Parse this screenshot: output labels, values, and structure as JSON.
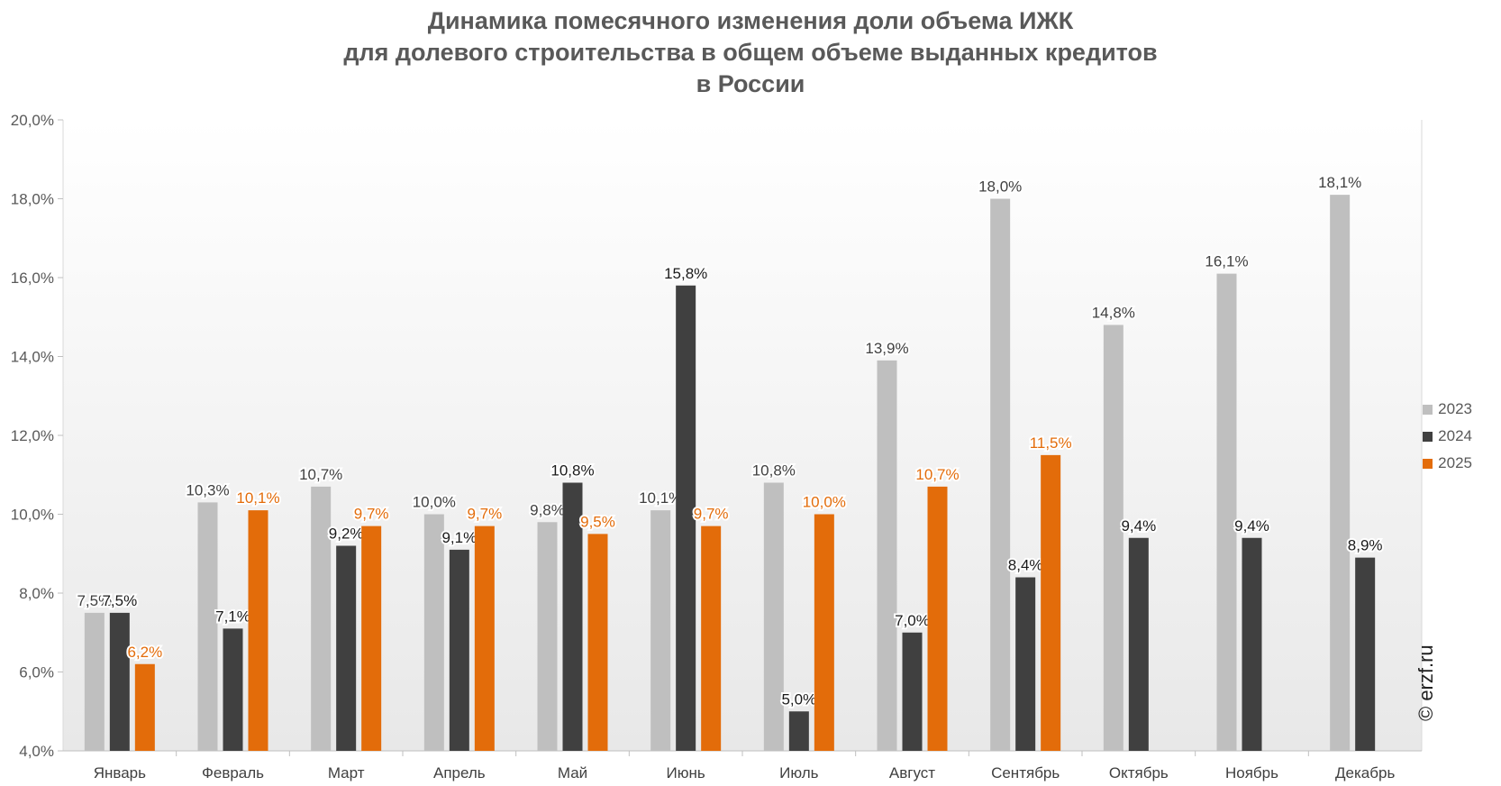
{
  "chart_data": {
    "type": "bar",
    "title_lines": [
      "Динамика помесячного изменения доли объема ИЖК",
      "для долевого строительства в общем объеме выданных кредитов",
      "в России"
    ],
    "categories": [
      "Январь",
      "Февраль",
      "Март",
      "Апрель",
      "Май",
      "Июнь",
      "Июль",
      "Август",
      "Сентябрь",
      "Октябрь",
      "Ноябрь",
      "Декабрь"
    ],
    "series": [
      {
        "name": "2023",
        "color": "#bfbfbf",
        "label_color": "#404040",
        "values": [
          7.5,
          10.3,
          10.7,
          10.0,
          9.8,
          10.1,
          10.8,
          13.9,
          18.0,
          14.8,
          16.1,
          18.1
        ],
        "labels": [
          "7,5%",
          "10,3%",
          "10,7%",
          "10,0%",
          "9,8%",
          "10,1%",
          "10,8%",
          "13,9%",
          "18,0%",
          "14,8%",
          "16,1%",
          "18,1%"
        ]
      },
      {
        "name": "2024",
        "color": "#404040",
        "label_color": "#1a1a1a",
        "values": [
          7.5,
          7.1,
          9.2,
          9.1,
          10.8,
          15.8,
          5.0,
          7.0,
          8.4,
          9.4,
          9.4,
          8.9
        ],
        "labels": [
          "7,5%",
          "7,1%",
          "9,2%",
          "9,1%",
          "10,8%",
          "15,8%",
          "5,0%",
          "7,0%",
          "8,4%",
          "9,4%",
          "9,4%",
          "8,9%"
        ]
      },
      {
        "name": "2025",
        "color": "#e36c0a",
        "label_color": "#e36c0a",
        "values": [
          6.2,
          10.1,
          9.7,
          9.7,
          9.5,
          9.7,
          10.0,
          10.7,
          11.5,
          null,
          null,
          null
        ],
        "labels": [
          "6,2%",
          "10,1%",
          "9,7%",
          "9,7%",
          "9,5%",
          "9,7%",
          "10,0%",
          "10,7%",
          "11,5%",
          null,
          null,
          null
        ]
      }
    ],
    "ylim": [
      4.0,
      20.0
    ],
    "y_ticks": [
      4.0,
      6.0,
      8.0,
      10.0,
      12.0,
      14.0,
      16.0,
      18.0,
      20.0
    ],
    "y_tick_labels": [
      "4,0%",
      "6,0%",
      "8,0%",
      "10,0%",
      "12,0%",
      "14,0%",
      "16,0%",
      "18,0%",
      "20,0%"
    ],
    "grid": false,
    "legend_position": "right"
  },
  "watermark": "© erzf.ru"
}
